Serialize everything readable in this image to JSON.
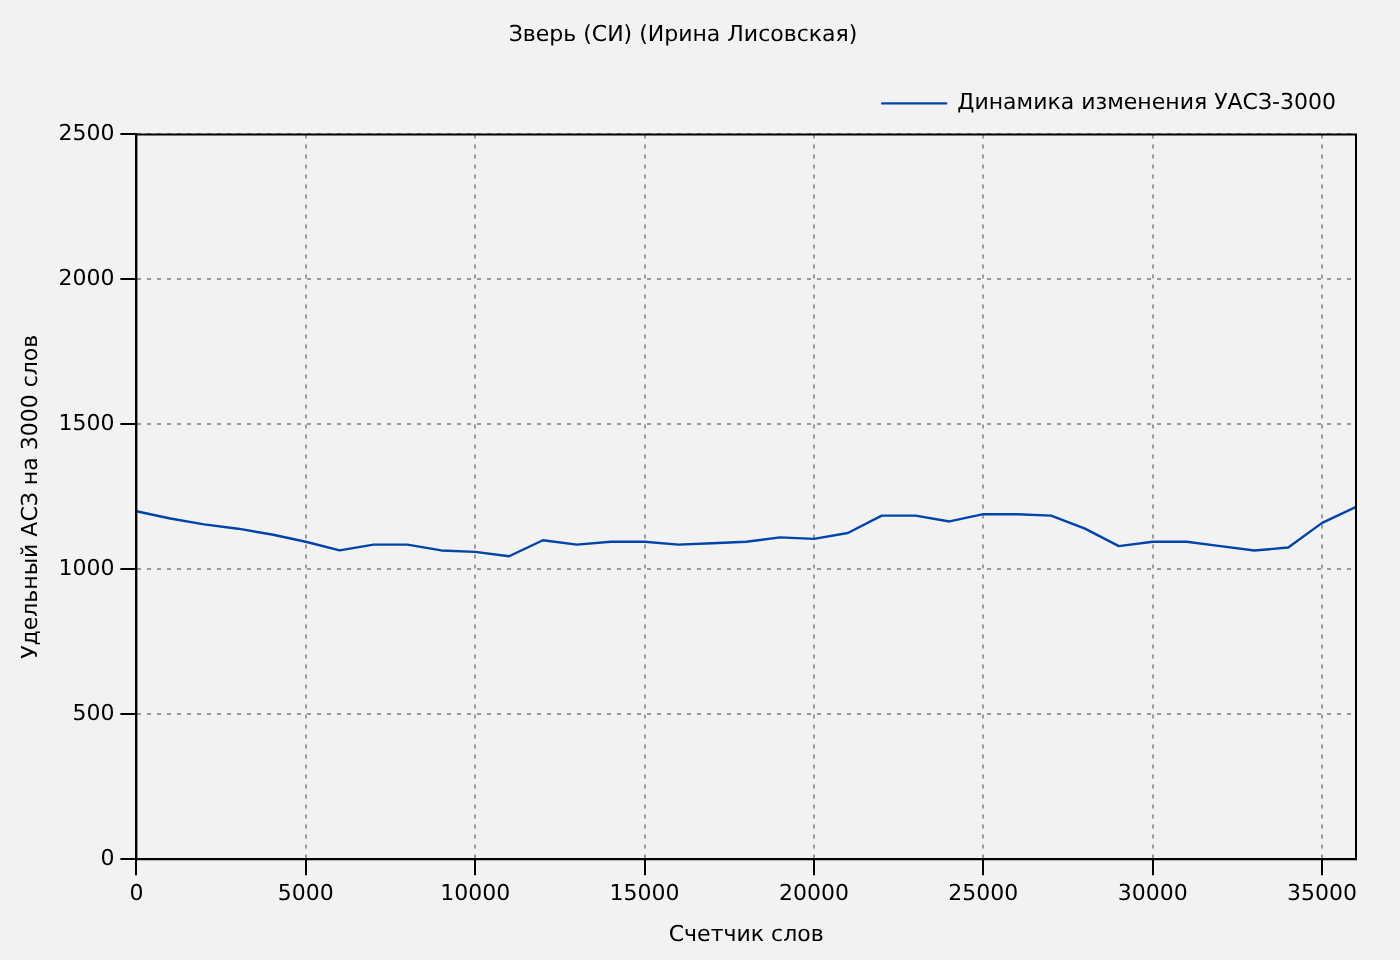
{
  "chart_data": {
    "type": "line",
    "title": "Зверь (СИ) (Ирина Лисовская)",
    "xlabel": "Счетчик слов",
    "ylabel": "Удельный АСЗ на 3000 слов",
    "x": [
      0,
      1000,
      2000,
      3000,
      4000,
      5000,
      6000,
      7000,
      8000,
      9000,
      10000,
      11000,
      12000,
      13000,
      14000,
      15000,
      16000,
      17000,
      18000,
      19000,
      20000,
      21000,
      22000,
      23000,
      24000,
      25000,
      26000,
      27000,
      28000,
      29000,
      30000,
      31000,
      32000,
      33000,
      34000,
      35000,
      36000
    ],
    "series": [
      {
        "name": "Динамика изменения УАСЗ-3000",
        "color": "#0044aa",
        "values": [
          1200,
          1175,
          1155,
          1140,
          1120,
          1095,
          1065,
          1085,
          1085,
          1065,
          1060,
          1045,
          1100,
          1085,
          1095,
          1095,
          1085,
          1090,
          1095,
          1110,
          1105,
          1125,
          1185,
          1185,
          1165,
          1190,
          1190,
          1185,
          1140,
          1080,
          1095,
          1095,
          1080,
          1065,
          1075,
          1160,
          1215
        ]
      }
    ],
    "xlim": [
      0,
      36000
    ],
    "xticks": [
      0,
      5000,
      10000,
      15000,
      20000,
      25000,
      30000,
      35000
    ],
    "ylim": [
      0,
      2500
    ],
    "yticks": [
      0,
      500,
      1000,
      1500,
      2000,
      2500
    ],
    "grid": true,
    "legend": "top right",
    "marker": "none",
    "line_style": "solid"
  }
}
